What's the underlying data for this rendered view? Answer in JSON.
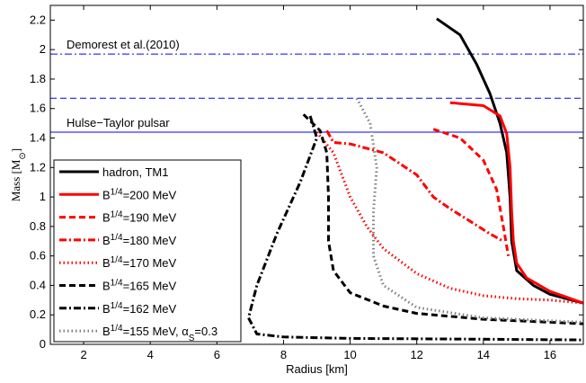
{
  "chart_data": {
    "type": "line",
    "xlabel": "Radius [km]",
    "ylabel": [
      "Mass [M",
      "⊙",
      "]"
    ],
    "xlim": [
      1,
      17
    ],
    "ylim": [
      0,
      2.3
    ],
    "xticks": [
      2,
      4,
      6,
      8,
      10,
      12,
      14,
      16
    ],
    "yticks": [
      0,
      0.2,
      0.4,
      0.6,
      0.8,
      1,
      1.2,
      1.4,
      1.6,
      1.8,
      2,
      2.2
    ],
    "hlines": [
      {
        "value": 1.97,
        "style": "dashdot",
        "color": "#0000ff",
        "label": "Demorest et al.(2010)"
      },
      {
        "value": 1.67,
        "style": "dash",
        "color": "#0000ff"
      },
      {
        "value": 1.44,
        "style": "solid",
        "color": "#0000ff",
        "label": "Hulse−Taylor pulsar"
      }
    ],
    "series": [
      {
        "name": "hadron, TM1",
        "color": "#000000",
        "style": "solid",
        "x": [
          12.6,
          13.3,
          13.8,
          14.2,
          14.5,
          14.7,
          14.8,
          14.85,
          15.0,
          15.5,
          16.0,
          17.0
        ],
        "values": [
          2.21,
          2.1,
          1.9,
          1.7,
          1.5,
          1.3,
          1.0,
          0.7,
          0.5,
          0.4,
          0.34,
          0.28
        ]
      },
      {
        "name": [
          "B",
          "1/4",
          "=200 MeV"
        ],
        "color": "#ff0000",
        "style": "solid",
        "x": [
          13.0,
          14.0,
          14.5,
          14.7,
          14.8,
          14.85,
          14.9,
          15.0,
          15.3,
          16.0,
          17.0
        ],
        "values": [
          1.64,
          1.62,
          1.55,
          1.43,
          1.2,
          0.9,
          0.7,
          0.55,
          0.45,
          0.36,
          0.28
        ]
      },
      {
        "name": [
          "B",
          "1/4",
          "=190 MeV"
        ],
        "color": "#ff0000",
        "style": "dash",
        "x": [
          12.5,
          13.3,
          14.0,
          14.4,
          14.6,
          14.75
        ],
        "values": [
          1.46,
          1.4,
          1.25,
          1.05,
          0.8,
          0.6
        ]
      },
      {
        "name": [
          "B",
          "1/4",
          "=180 MeV"
        ],
        "color": "#ff0000",
        "style": "dashdot",
        "x": [
          9.3,
          9.5,
          10.0,
          11.0,
          12.0,
          12.5,
          13.0,
          13.5,
          14.2,
          14.6
        ],
        "values": [
          1.45,
          1.37,
          1.36,
          1.3,
          1.15,
          1.0,
          0.92,
          0.85,
          0.75,
          0.7
        ]
      },
      {
        "name": [
          "B",
          "1/4",
          "=170 MeV"
        ],
        "color": "#ff0000",
        "style": "dot",
        "x": [
          9.0,
          9.5,
          10.0,
          10.5,
          11.0,
          12.0,
          13.0,
          14.0,
          15.0,
          16.0,
          17.0
        ],
        "values": [
          1.44,
          1.3,
          1.0,
          0.8,
          0.65,
          0.48,
          0.38,
          0.33,
          0.31,
          0.3,
          0.28
        ]
      },
      {
        "name": [
          "B",
          "1/4",
          "=165 MeV"
        ],
        "color": "#000000",
        "style": "dash",
        "x": [
          8.6,
          9.1,
          9.3,
          9.35,
          9.35,
          9.5,
          10.0,
          11.0,
          12.0,
          14.0,
          17.0
        ],
        "values": [
          1.56,
          1.45,
          1.3,
          1.0,
          0.7,
          0.5,
          0.35,
          0.26,
          0.21,
          0.17,
          0.14
        ]
      },
      {
        "name": [
          "B",
          "1/4",
          "=162 MeV"
        ],
        "color": "#000000",
        "style": "dashdot",
        "x": [
          8.8,
          9.0,
          8.5,
          7.8,
          7.2,
          6.95,
          7.2,
          8.0,
          10.0,
          14.0,
          17.0
        ],
        "values": [
          1.55,
          1.4,
          1.1,
          0.75,
          0.4,
          0.18,
          0.07,
          0.05,
          0.04,
          0.035,
          0.03
        ]
      },
      {
        "name": [
          "B",
          "1/4",
          "=155 MeV, α",
          "S",
          "=0.3"
        ],
        "color": "#808080",
        "style": "dot",
        "x": [
          10.2,
          10.6,
          10.8,
          10.7,
          10.7,
          11.0,
          12.0,
          14.0,
          17.0
        ],
        "values": [
          1.67,
          1.5,
          1.2,
          0.9,
          0.6,
          0.4,
          0.25,
          0.18,
          0.15
        ]
      }
    ]
  }
}
